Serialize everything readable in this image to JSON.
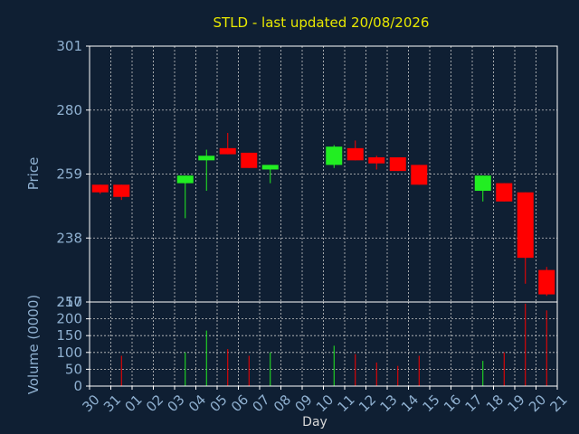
{
  "chart_data": {
    "type": "candlestick",
    "title": "STLD - last updated 20/08/2026",
    "xlabel": "Day",
    "price": {
      "ylabel": "Price",
      "ylim": [
        217,
        301
      ],
      "yticks": [
        217,
        238,
        259,
        280,
        301
      ],
      "grid": true
    },
    "volume": {
      "ylabel": "Volume (0000)",
      "ylim": [
        0,
        250
      ],
      "yticks": [
        0,
        50,
        100,
        150,
        200,
        250
      ],
      "grid": true
    },
    "x_ticks": [
      "30",
      "31",
      "01",
      "02",
      "03",
      "04",
      "05",
      "06",
      "07",
      "08",
      "09",
      "10",
      "11",
      "12",
      "13",
      "14",
      "15",
      "16",
      "17",
      "18",
      "19",
      "20",
      "21"
    ],
    "colors": {
      "up": "#22ee22",
      "down": "#ff0000",
      "background": "#0f1f33",
      "title": "#e8e800",
      "axis_text": "#8fb0d0"
    },
    "candles": [
      {
        "day": "30",
        "open": 255.5,
        "high": 255.5,
        "low": 252.5,
        "close": 253,
        "volume": 0
      },
      {
        "day": "31",
        "open": 255.5,
        "high": 255.5,
        "low": 250.5,
        "close": 251.5,
        "volume": 90
      },
      {
        "day": "03",
        "open": 256,
        "high": 258.5,
        "low": 244.5,
        "close": 258.5,
        "volume": 100
      },
      {
        "day": "04",
        "open": 263.5,
        "high": 267,
        "low": 253.5,
        "close": 265,
        "volume": 165
      },
      {
        "day": "05",
        "open": 267.5,
        "high": 272.5,
        "low": 265.5,
        "close": 265.5,
        "volume": 110
      },
      {
        "day": "06",
        "open": 266,
        "high": 266,
        "low": 261,
        "close": 261,
        "volume": 90
      },
      {
        "day": "07",
        "open": 260.5,
        "high": 262,
        "low": 256,
        "close": 262,
        "volume": 100
      },
      {
        "day": "10",
        "open": 262,
        "high": 268.5,
        "low": 261,
        "close": 268,
        "volume": 120
      },
      {
        "day": "11",
        "open": 267.5,
        "high": 270,
        "low": 263.5,
        "close": 263.5,
        "volume": 95
      },
      {
        "day": "12",
        "open": 264.5,
        "high": 265,
        "low": 260.5,
        "close": 262.5,
        "volume": 70
      },
      {
        "day": "13",
        "open": 264.5,
        "high": 264.5,
        "low": 260,
        "close": 260,
        "volume": 60
      },
      {
        "day": "14",
        "open": 262,
        "high": 262,
        "low": 255.5,
        "close": 255.5,
        "volume": 90
      },
      {
        "day": "17",
        "open": 253.5,
        "high": 258.5,
        "low": 250,
        "close": 258.5,
        "volume": 75
      },
      {
        "day": "18",
        "open": 256,
        "high": 256,
        "low": 250,
        "close": 250,
        "volume": 100
      },
      {
        "day": "19",
        "open": 253,
        "high": 253,
        "low": 223,
        "close": 231.5,
        "volume": 245
      },
      {
        "day": "20",
        "open": 227.5,
        "high": 228.5,
        "low": 219,
        "close": 219.5,
        "volume": 225
      }
    ]
  }
}
